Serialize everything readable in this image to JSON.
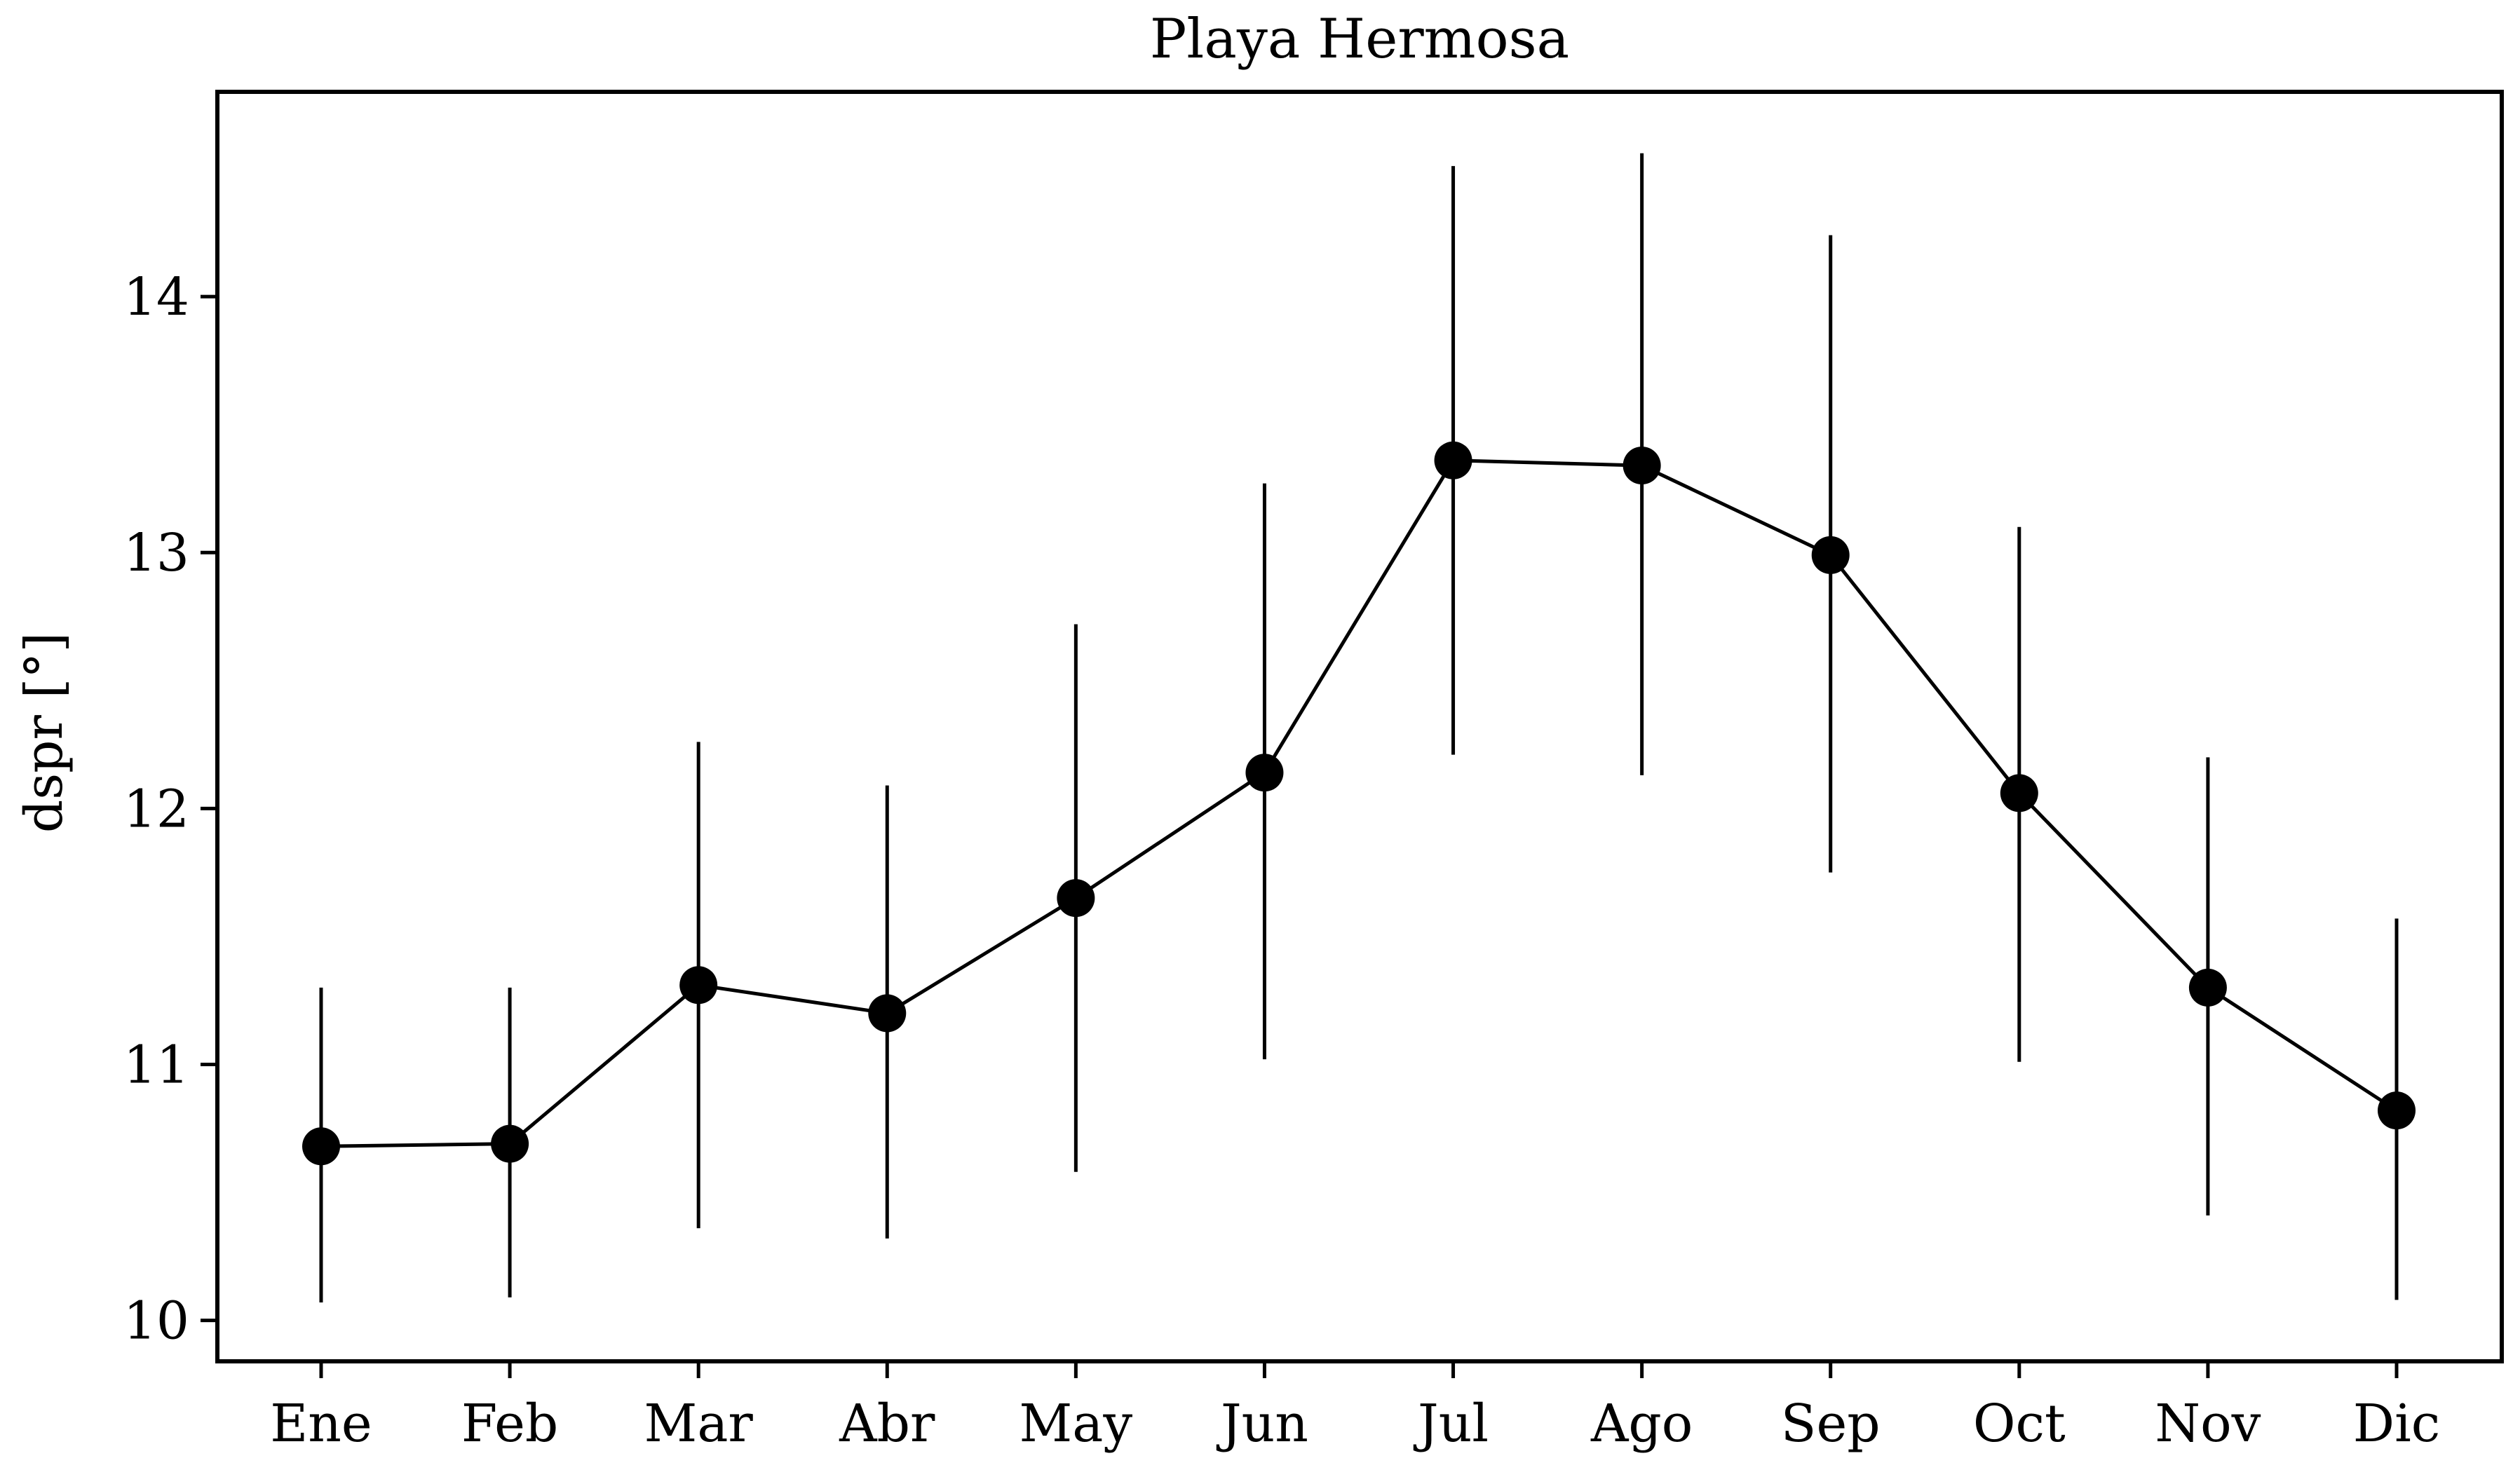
{
  "chart_data": {
    "type": "line",
    "title": "Playa Hermosa",
    "xlabel": "",
    "ylabel": "dspr [°]",
    "categories": [
      "Ene",
      "Feb",
      "Mar",
      "Abr",
      "May",
      "Jun",
      "Jul",
      "Ago",
      "Sep",
      "Oct",
      "Nov",
      "Dic"
    ],
    "series": [
      {
        "values": [
          10.68,
          10.69,
          11.31,
          11.2,
          11.65,
          12.14,
          13.36,
          13.34,
          12.99,
          12.06,
          11.3,
          10.82
        ],
        "error_low": [
          10.07,
          10.09,
          10.36,
          10.32,
          10.58,
          11.02,
          12.21,
          12.13,
          11.75,
          11.01,
          10.41,
          10.08
        ],
        "error_high": [
          11.3,
          11.3,
          12.26,
          12.09,
          12.72,
          13.27,
          14.51,
          14.56,
          14.24,
          13.1,
          12.2,
          11.57
        ]
      }
    ],
    "yticks": [
      "10",
      "11",
      "12",
      "13",
      "14"
    ],
    "ylim": [
      9.84,
      14.8
    ],
    "grid": false,
    "legend": "none",
    "colors": {
      "line": "#000000",
      "marker": "#000000",
      "errorbar": "#000000",
      "axes": "#000000",
      "background": "#ffffff"
    }
  }
}
